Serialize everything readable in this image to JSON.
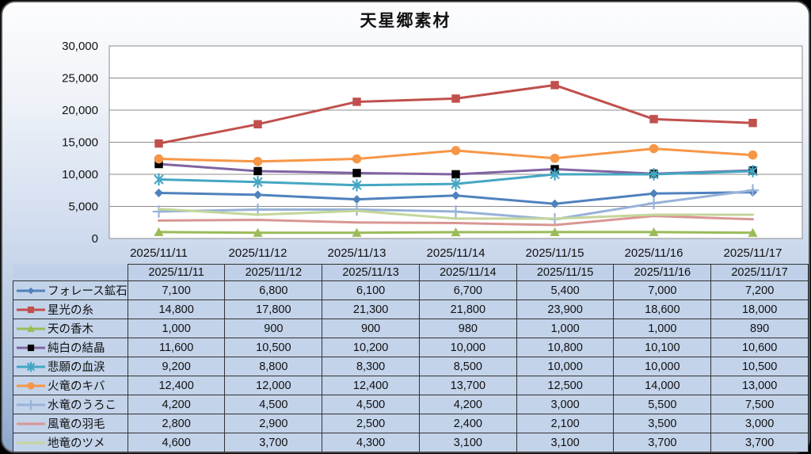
{
  "window": {
    "title": "天星郷素材"
  },
  "theme": {
    "frame_border": "#555555",
    "bg_top": "#fdfdfe",
    "bg_bottom": "#8ca7cd",
    "cell_bg": "#c3d3ea",
    "header_cell_bg": "#bfd0e8",
    "table_border": "#333333",
    "grid": "#8c8c8c",
    "plot_bg": "#ffffff",
    "text": "#111111"
  },
  "chart_data": {
    "type": "line",
    "title": "天星郷素材",
    "x": [
      "2025/11/11",
      "2025/11/12",
      "2025/11/13",
      "2025/11/14",
      "2025/11/15",
      "2025/11/16",
      "2025/11/17"
    ],
    "ylim": [
      0,
      30000
    ],
    "yticks": [
      0,
      5000,
      10000,
      15000,
      20000,
      25000,
      30000
    ],
    "grid": true,
    "legend_position": "table-left",
    "series": [
      {
        "name": "フォレース鉱石",
        "color": "#4F81BD",
        "marker": "diamond",
        "marker_color": "#4F81BD",
        "values": [
          7100,
          6800,
          6100,
          6700,
          5400,
          7000,
          7200
        ]
      },
      {
        "name": "星光の糸",
        "color": "#C0504D",
        "marker": "square",
        "marker_color": "#C0504D",
        "values": [
          14800,
          17800,
          21300,
          21800,
          23900,
          18600,
          18000
        ]
      },
      {
        "name": "天の香木",
        "color": "#9BBB59",
        "marker": "triangle",
        "marker_color": "#9BBB59",
        "values": [
          1000,
          900,
          900,
          980,
          1000,
          1000,
          890
        ]
      },
      {
        "name": "純白の結晶",
        "color": "#8064A2",
        "marker": "square",
        "marker_color": "#000000",
        "values": [
          11600,
          10500,
          10200,
          10000,
          10800,
          10100,
          10600
        ]
      },
      {
        "name": "悲願の血涙",
        "color": "#44A6C2",
        "marker": "asterisk",
        "marker_color": "#44A6C2",
        "values": [
          9200,
          8800,
          8300,
          8500,
          10000,
          10000,
          10500
        ]
      },
      {
        "name": "火竜のキバ",
        "color": "#F79646",
        "marker": "circle",
        "marker_color": "#F79646",
        "values": [
          12400,
          12000,
          12400,
          13700,
          12500,
          14000,
          13000
        ]
      },
      {
        "name": "水竜のうろこ",
        "color": "#98B2D8",
        "marker": "plus",
        "marker_color": "#98B2D8",
        "values": [
          4200,
          4500,
          4500,
          4200,
          3000,
          5500,
          7500
        ]
      },
      {
        "name": "風竜の羽毛",
        "color": "#D99694",
        "marker": "none",
        "marker_color": "#D99694",
        "values": [
          2800,
          2900,
          2500,
          2400,
          2100,
          3500,
          3000
        ]
      },
      {
        "name": "地竜のツメ",
        "color": "#C3D69B",
        "marker": "none",
        "marker_color": "#C3D69B",
        "values": [
          4600,
          3700,
          4300,
          3100,
          3100,
          3700,
          3700
        ]
      }
    ]
  }
}
